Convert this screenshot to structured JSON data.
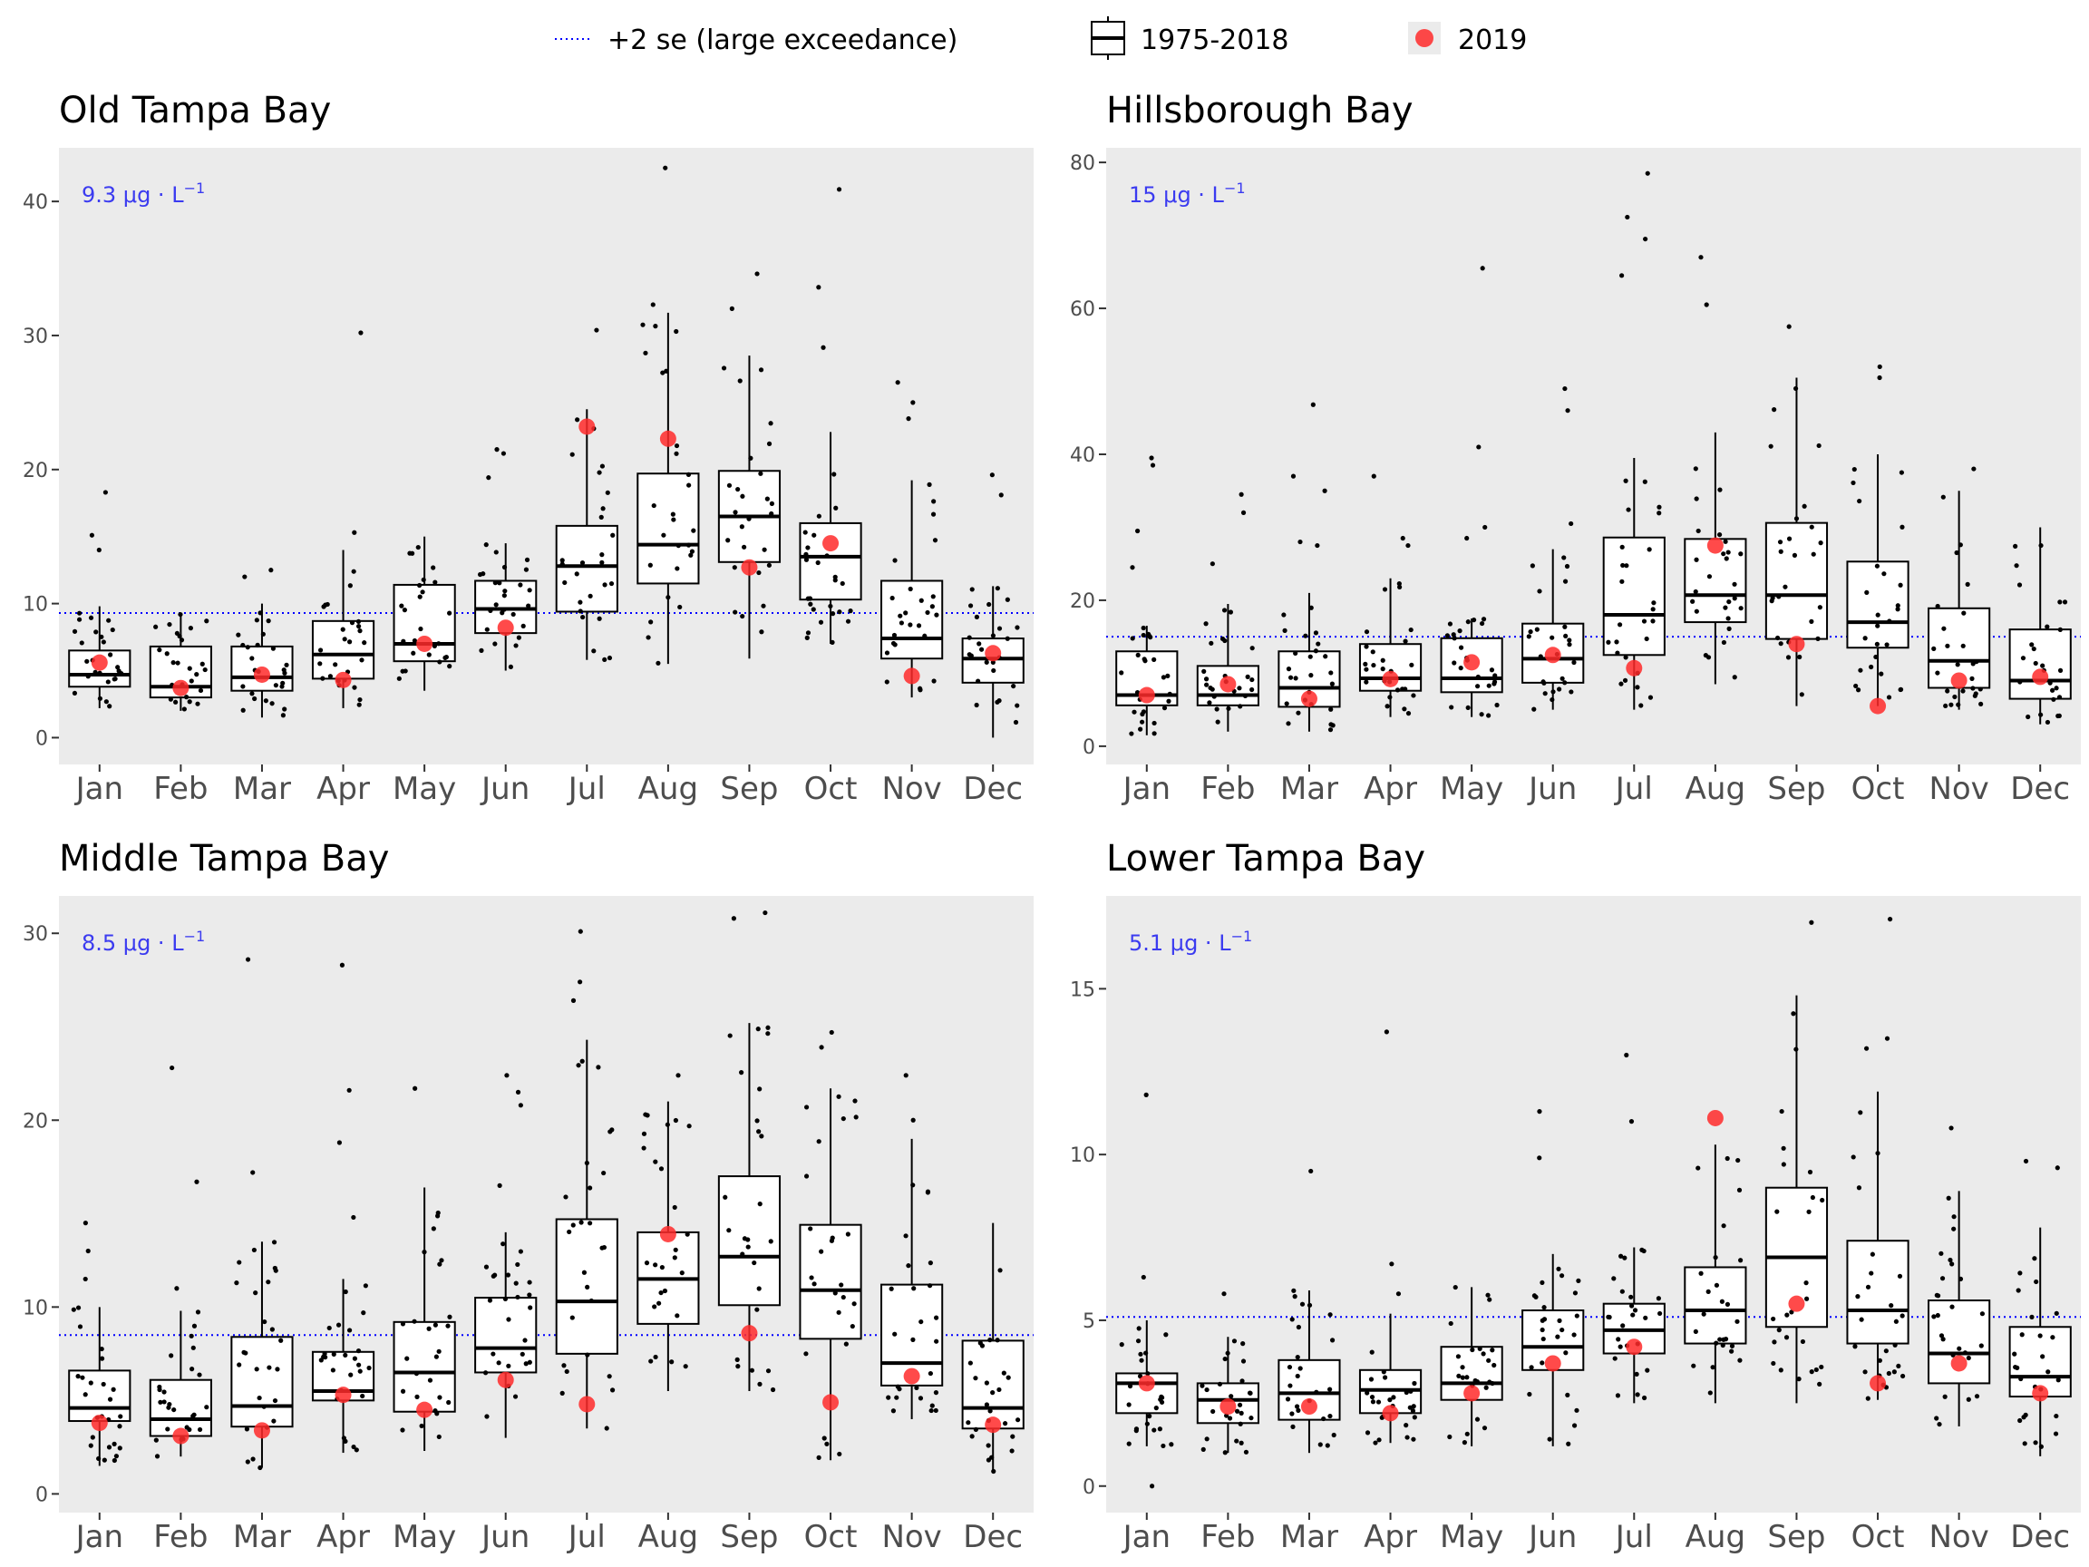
{
  "legend": {
    "threshold_label": "+2 se (large exceedance)",
    "box_label": "1975-2018",
    "point_label": "2019"
  },
  "colors": {
    "panel_bg": "#ebebeb",
    "threshold": "#0000ff",
    "point_2019": "#ff2a2a",
    "box_fill": "#ffffff"
  },
  "months": [
    "Jan",
    "Feb",
    "Mar",
    "Apr",
    "May",
    "Jun",
    "Jul",
    "Aug",
    "Sep",
    "Oct",
    "Nov",
    "Dec"
  ],
  "chart_data": [
    {
      "type": "boxplot",
      "title": "Old Tampa Bay",
      "threshold": 9.3,
      "threshold_label": "9.3 μg · L",
      "threshold_unit_sup": "−1",
      "ylim": [
        -2,
        44
      ],
      "yticks": [
        0,
        10,
        20,
        30,
        40
      ],
      "boxes": [
        {
          "q1": 3.8,
          "med": 4.7,
          "q3": 6.5,
          "lo": 2.2,
          "hi": 9.8,
          "out": [
            18.3,
            15.1,
            14.0
          ],
          "y2019": 5.6
        },
        {
          "q1": 3.0,
          "med": 3.8,
          "q3": 6.8,
          "lo": 2.0,
          "hi": 9.2,
          "out": [],
          "y2019": 3.7
        },
        {
          "q1": 3.5,
          "med": 4.5,
          "q3": 6.8,
          "lo": 1.5,
          "hi": 10.0,
          "out": [
            12.5,
            12.0
          ],
          "y2019": 4.7
        },
        {
          "q1": 4.4,
          "med": 6.2,
          "q3": 8.7,
          "lo": 2.2,
          "hi": 14.0,
          "out": [
            30.2,
            15.3
          ],
          "y2019": 4.3
        },
        {
          "q1": 5.7,
          "med": 7.0,
          "q3": 11.4,
          "lo": 3.5,
          "hi": 15.0,
          "out": [],
          "y2019": 7.0
        },
        {
          "q1": 7.8,
          "med": 9.6,
          "q3": 11.7,
          "lo": 5.0,
          "hi": 14.5,
          "out": [
            21.5,
            21.2,
            19.4
          ],
          "y2019": 8.2
        },
        {
          "q1": 9.4,
          "med": 12.8,
          "q3": 15.8,
          "lo": 5.8,
          "hi": 24.5,
          "out": [
            30.4
          ],
          "y2019": 23.2
        },
        {
          "q1": 11.5,
          "med": 14.4,
          "q3": 19.7,
          "lo": 5.5,
          "hi": 31.7,
          "out": [
            42.5,
            32.3
          ],
          "y2019": 22.3
        },
        {
          "q1": 13.1,
          "med": 16.5,
          "q3": 19.9,
          "lo": 5.9,
          "hi": 28.5,
          "out": [
            34.6,
            32.0
          ],
          "y2019": 12.7
        },
        {
          "q1": 10.3,
          "med": 13.5,
          "q3": 16.0,
          "lo": 7.0,
          "hi": 22.8,
          "out": [
            40.9,
            33.6,
            29.1
          ],
          "y2019": 14.5
        },
        {
          "q1": 5.9,
          "med": 7.4,
          "q3": 11.7,
          "lo": 3.0,
          "hi": 19.2,
          "out": [
            26.5,
            25.0,
            23.8
          ],
          "y2019": 4.6
        },
        {
          "q1": 4.1,
          "med": 5.9,
          "q3": 7.4,
          "lo": 0.0,
          "hi": 11.3,
          "out": [
            19.6,
            18.1
          ],
          "y2019": 6.3
        }
      ]
    },
    {
      "type": "boxplot",
      "title": "Hillsborough Bay",
      "threshold": 15,
      "threshold_label": "15 μg · L",
      "threshold_unit_sup": "−1",
      "ylim": [
        -2.5,
        82
      ],
      "yticks": [
        0,
        20,
        40,
        60,
        80
      ],
      "boxes": [
        {
          "q1": 5.6,
          "med": 7.0,
          "q3": 13.0,
          "lo": 1.5,
          "hi": 16.5,
          "out": [
            39.5,
            38.5,
            29.5,
            24.5
          ],
          "y2019": 7.0
        },
        {
          "q1": 5.6,
          "med": 7.0,
          "q3": 11.0,
          "lo": 2.0,
          "hi": 19.5,
          "out": [
            34.5,
            32.0,
            25.0
          ],
          "y2019": 8.5
        },
        {
          "q1": 5.4,
          "med": 8.0,
          "q3": 13.0,
          "lo": 2.0,
          "hi": 21.0,
          "out": [
            46.8,
            37.0,
            35.0,
            28.0,
            27.5
          ],
          "y2019": 6.5
        },
        {
          "q1": 7.6,
          "med": 9.3,
          "q3": 14.0,
          "lo": 4.0,
          "hi": 23.0,
          "out": [
            37.0,
            28.5,
            27.5
          ],
          "y2019": 9.2
        },
        {
          "q1": 7.4,
          "med": 9.3,
          "q3": 14.8,
          "lo": 4.0,
          "hi": 17.5,
          "out": [
            65.5,
            41.0,
            30.0,
            28.5
          ],
          "y2019": 11.5
        },
        {
          "q1": 8.7,
          "med": 12.0,
          "q3": 16.8,
          "lo": 5.0,
          "hi": 27.0,
          "out": [
            49.0,
            46.0,
            30.5
          ],
          "y2019": 12.5
        },
        {
          "q1": 12.5,
          "med": 18.0,
          "q3": 28.6,
          "lo": 5.0,
          "hi": 39.5,
          "out": [
            78.5,
            72.5,
            69.5,
            64.5
          ],
          "y2019": 10.7
        },
        {
          "q1": 17.0,
          "med": 20.7,
          "q3": 28.4,
          "lo": 8.5,
          "hi": 43.0,
          "out": [
            67.0,
            60.5
          ],
          "y2019": 27.5
        },
        {
          "q1": 14.7,
          "med": 20.7,
          "q3": 30.6,
          "lo": 5.5,
          "hi": 50.5,
          "out": [
            57.5
          ],
          "y2019": 14.0
        },
        {
          "q1": 13.5,
          "med": 17.0,
          "q3": 25.3,
          "lo": 5.5,
          "hi": 40.0,
          "out": [
            52.0,
            50.5
          ],
          "y2019": 5.5
        },
        {
          "q1": 8.0,
          "med": 11.7,
          "q3": 18.9,
          "lo": 5.0,
          "hi": 35.0,
          "out": [
            38.0
          ],
          "y2019": 9.0
        },
        {
          "q1": 6.5,
          "med": 9.0,
          "q3": 16.0,
          "lo": 3.0,
          "hi": 30.0,
          "out": [],
          "y2019": 9.5
        }
      ]
    },
    {
      "type": "boxplot",
      "title": "Middle Tampa Bay",
      "threshold": 8.5,
      "threshold_label": "8.5 μg · L",
      "threshold_unit_sup": "−1",
      "ylim": [
        -1,
        32
      ],
      "yticks": [
        0,
        10,
        20,
        30
      ],
      "boxes": [
        {
          "q1": 3.9,
          "med": 4.6,
          "q3": 6.6,
          "lo": 1.5,
          "hi": 10.0,
          "out": [
            14.5,
            13.0,
            11.5
          ],
          "y2019": 3.8
        },
        {
          "q1": 3.1,
          "med": 4.0,
          "q3": 6.1,
          "lo": 2.0,
          "hi": 9.8,
          "out": [
            22.8,
            16.7,
            11.0
          ],
          "y2019": 3.1
        },
        {
          "q1": 3.6,
          "med": 4.7,
          "q3": 8.4,
          "lo": 1.4,
          "hi": 13.5,
          "out": [
            28.6,
            17.2
          ],
          "y2019": 3.4
        },
        {
          "q1": 5.0,
          "med": 5.5,
          "q3": 7.6,
          "lo": 2.2,
          "hi": 11.5,
          "out": [
            28.3,
            21.6,
            18.8,
            14.8
          ],
          "y2019": 5.3
        },
        {
          "q1": 4.4,
          "med": 6.5,
          "q3": 9.2,
          "lo": 2.3,
          "hi": 16.4,
          "out": [
            21.7
          ],
          "y2019": 4.5
        },
        {
          "q1": 6.5,
          "med": 7.8,
          "q3": 10.5,
          "lo": 3.0,
          "hi": 14.0,
          "out": [
            22.4,
            21.5,
            20.8,
            16.5
          ],
          "y2019": 6.1
        },
        {
          "q1": 7.5,
          "med": 10.3,
          "q3": 14.7,
          "lo": 3.5,
          "hi": 24.3,
          "out": [
            30.1,
            27.4,
            26.4
          ],
          "y2019": 4.8
        },
        {
          "q1": 9.1,
          "med": 11.5,
          "q3": 14.0,
          "lo": 5.5,
          "hi": 21.0,
          "out": [
            22.4
          ],
          "y2019": 13.9
        },
        {
          "q1": 10.1,
          "med": 12.7,
          "q3": 17.0,
          "lo": 5.5,
          "hi": 25.2,
          "out": [
            31.1,
            30.8
          ],
          "y2019": 8.6
        },
        {
          "q1": 8.3,
          "med": 10.9,
          "q3": 14.4,
          "lo": 1.8,
          "hi": 21.7,
          "out": [
            24.7,
            23.9
          ],
          "y2019": 4.9
        },
        {
          "q1": 5.8,
          "med": 7.0,
          "q3": 11.2,
          "lo": 4.0,
          "hi": 19.0,
          "out": [
            22.4,
            20.0
          ],
          "y2019": 6.3
        },
        {
          "q1": 3.5,
          "med": 4.6,
          "q3": 8.2,
          "lo": 1.2,
          "hi": 14.5,
          "out": [],
          "y2019": 3.7
        }
      ]
    },
    {
      "type": "boxplot",
      "title": "Lower Tampa Bay",
      "threshold": 5.1,
      "threshold_label": "5.1 μg · L",
      "threshold_unit_sup": "−1",
      "ylim": [
        -0.8,
        17.8
      ],
      "yticks": [
        0,
        5,
        10,
        15
      ],
      "boxes": [
        {
          "q1": 2.2,
          "med": 3.1,
          "q3": 3.4,
          "lo": 1.2,
          "hi": 5.0,
          "out": [
            11.8,
            6.3,
            0.0
          ],
          "y2019": 3.1
        },
        {
          "q1": 1.9,
          "med": 2.6,
          "q3": 3.1,
          "lo": 1.0,
          "hi": 4.5,
          "out": [
            5.8
          ],
          "y2019": 2.4
        },
        {
          "q1": 2.0,
          "med": 2.8,
          "q3": 3.8,
          "lo": 1.0,
          "hi": 5.9,
          "out": [
            9.5
          ],
          "y2019": 2.4
        },
        {
          "q1": 2.2,
          "med": 2.9,
          "q3": 3.5,
          "lo": 1.3,
          "hi": 5.2,
          "out": [
            13.7,
            6.7,
            5.8
          ],
          "y2019": 2.2
        },
        {
          "q1": 2.6,
          "med": 3.1,
          "q3": 4.2,
          "lo": 1.2,
          "hi": 6.0,
          "out": [],
          "y2019": 2.8
        },
        {
          "q1": 3.5,
          "med": 4.2,
          "q3": 5.3,
          "lo": 1.2,
          "hi": 7.0,
          "out": [
            11.3,
            9.9
          ],
          "y2019": 3.7
        },
        {
          "q1": 4.0,
          "med": 4.7,
          "q3": 5.5,
          "lo": 2.5,
          "hi": 7.2,
          "out": [
            13.0,
            11.0
          ],
          "y2019": 4.2
        },
        {
          "q1": 4.3,
          "med": 5.3,
          "q3": 6.6,
          "lo": 2.5,
          "hi": 10.3,
          "out": [],
          "y2019": 11.1
        },
        {
          "q1": 4.8,
          "med": 6.9,
          "q3": 9.0,
          "lo": 2.5,
          "hi": 14.8,
          "out": [
            17.0
          ],
          "y2019": 5.5
        },
        {
          "q1": 4.3,
          "med": 5.3,
          "q3": 7.4,
          "lo": 2.6,
          "hi": 11.9,
          "out": [
            17.1,
            13.5,
            13.2
          ],
          "y2019": 3.1
        },
        {
          "q1": 3.1,
          "med": 4.0,
          "q3": 5.6,
          "lo": 1.8,
          "hi": 8.9,
          "out": [
            10.8
          ],
          "y2019": 3.7
        },
        {
          "q1": 2.7,
          "med": 3.3,
          "q3": 4.8,
          "lo": 0.9,
          "hi": 7.8,
          "out": [
            9.8,
            9.6
          ],
          "y2019": 2.8
        }
      ]
    }
  ]
}
